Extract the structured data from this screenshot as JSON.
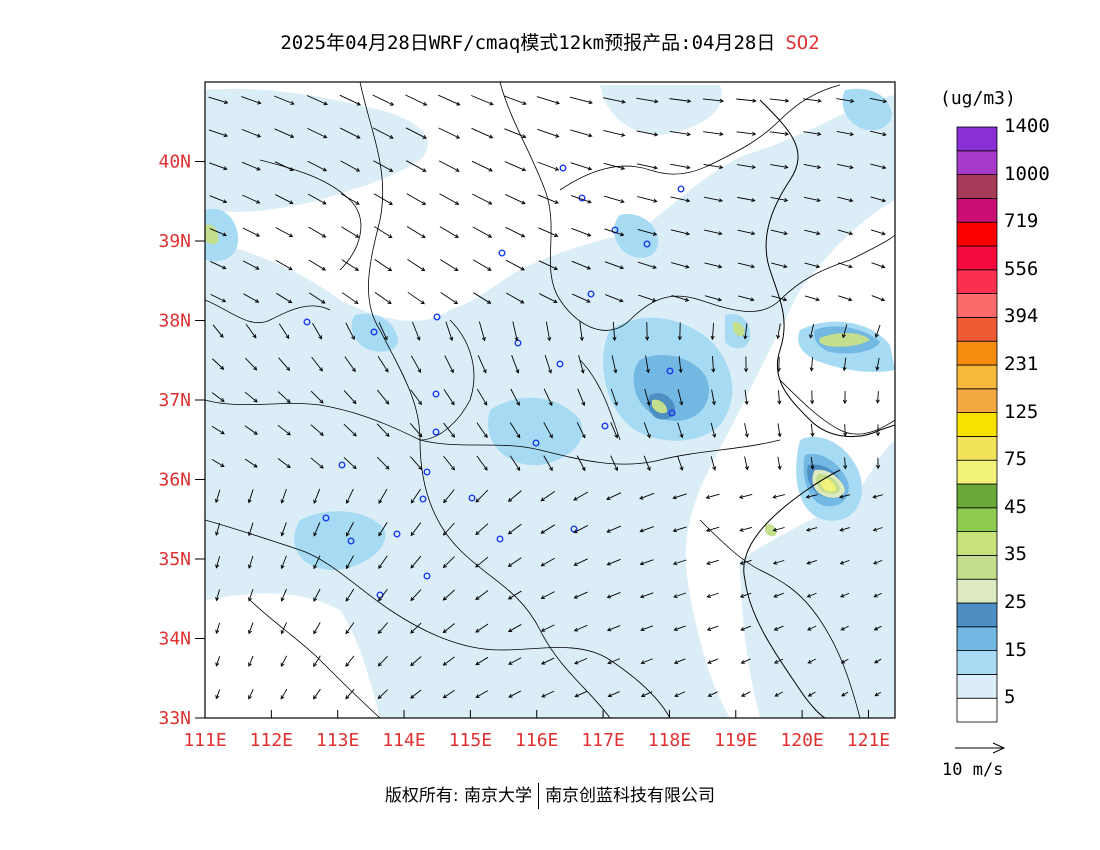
{
  "title": {
    "main": "2025年04月28日WRF/cmaq模式12km预报产品:04月28日",
    "species": "SO2"
  },
  "map": {
    "lat_labels": [
      "40N",
      "39N",
      "38N",
      "37N",
      "36N",
      "35N",
      "34N",
      "33N"
    ],
    "lat_values": [
      40,
      39,
      38,
      37,
      36,
      35,
      34,
      33
    ],
    "lon_labels": [
      "111E",
      "112E",
      "113E",
      "114E",
      "115E",
      "116E",
      "117E",
      "118E",
      "119E",
      "120E",
      "121E"
    ],
    "lon_values": [
      111,
      112,
      113,
      114,
      115,
      116,
      117,
      118,
      119,
      120,
      121
    ],
    "extent": {
      "lon_min": 111,
      "lon_max": 121.4,
      "lat_min": 33,
      "lat_max": 41
    }
  },
  "colorbar": {
    "unit": "(ug/m3)",
    "colors": [
      "#ffffff",
      "#dbeef8",
      "#a6dbf3",
      "#72b8e3",
      "#4d8ec3",
      "#dde9c0",
      "#c3df8e",
      "#c7e278",
      "#8fca50",
      "#6aa83a",
      "#f2f27a",
      "#f3e35a",
      "#f8e000",
      "#f4a842",
      "#f6b93c",
      "#f58d10",
      "#ee5a34",
      "#fb6b6b",
      "#f93050",
      "#f40a3c",
      "#fc0000",
      "#c90f75",
      "#a83a59",
      "#a73ac8",
      "#8a2fd6"
    ],
    "labels": [
      "5",
      "15",
      "25",
      "35",
      "45",
      "75",
      "125",
      "231",
      "394",
      "556",
      "719",
      "1000",
      "1400"
    ],
    "label_slots": [
      1,
      3,
      5,
      7,
      9,
      11,
      13,
      15,
      17,
      19,
      21,
      23,
      25
    ]
  },
  "wind_reference": {
    "label": "10 m/s"
  },
  "footer": {
    "left": "版权所有: 南京大学",
    "right": "南京创蓝科技有限公司"
  }
}
